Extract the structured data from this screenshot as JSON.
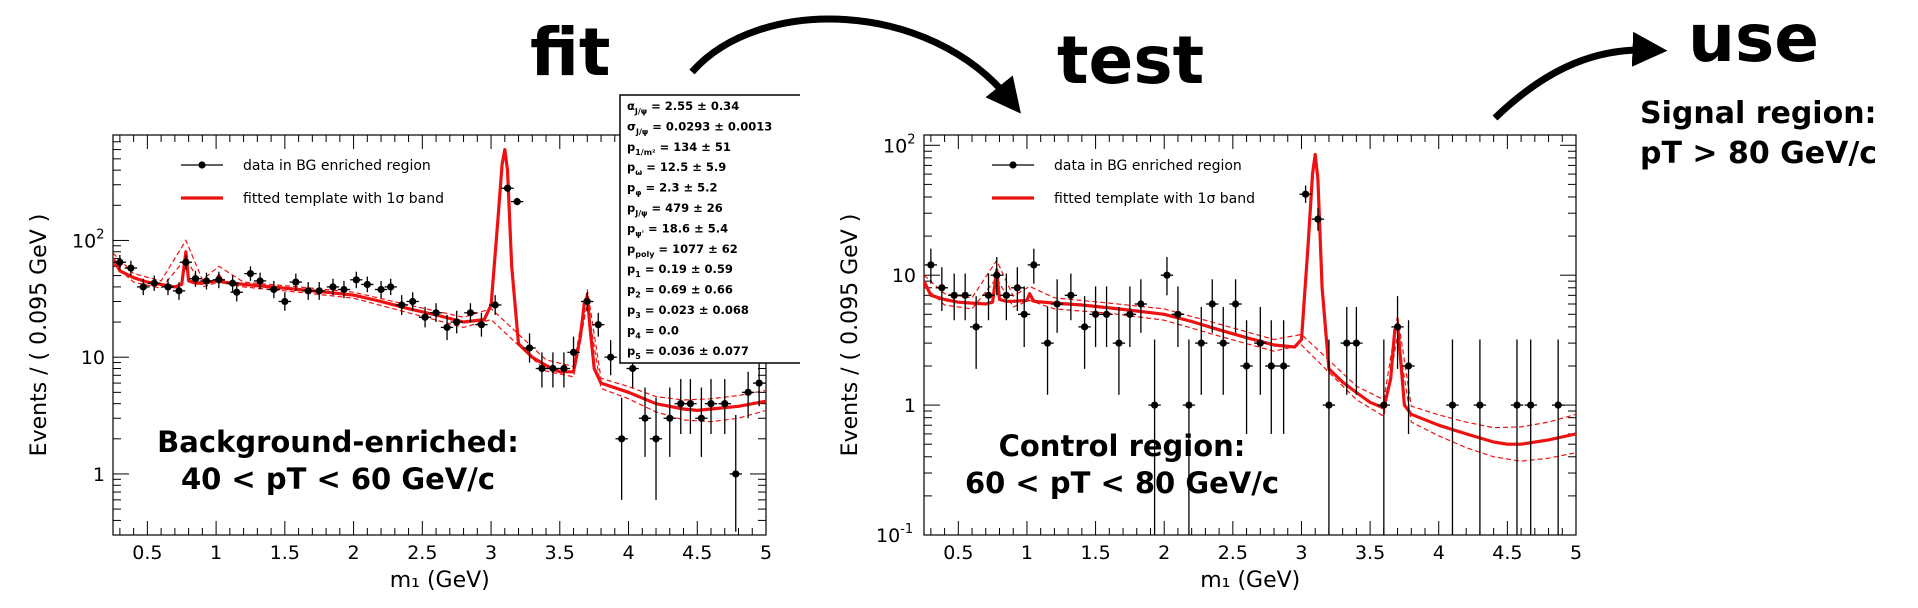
{
  "headings": {
    "fit": "fit",
    "test": "test",
    "use": "use"
  },
  "signal_region": {
    "line1": "Signal region:",
    "line2": "pT > 80 GeV/c"
  },
  "chart_data": [
    {
      "type": "scatter",
      "panel": "Background-enriched",
      "title": "",
      "xlabel": "m₁ (GeV)",
      "ylabel": "Events / ( 0.095 GeV )",
      "xlim": [
        0.25,
        5.0
      ],
      "ylim": [
        0.3,
        800
      ],
      "yscale": "log",
      "xticks": [
        "0.5",
        "1",
        "1.5",
        "2",
        "2.5",
        "3",
        "3.5",
        "4",
        "4.5",
        "5"
      ],
      "yticks": [
        {
          "v": 1,
          "label": "1",
          "exp": ""
        },
        {
          "v": 10,
          "label": "10",
          "exp": ""
        },
        {
          "v": 100,
          "label": "10",
          "exp": "2"
        }
      ],
      "region_label": [
        "Background-enriched:",
        "40 < pT < 60 GeV/c"
      ],
      "legend": {
        "position": "top-left",
        "entries": [
          "data in BG enriched region",
          "fitted template with 1σ band"
        ]
      },
      "fit_params": [
        {
          "name": "α",
          "sub": "J/ψ",
          "value": "2.55 ± 0.34"
        },
        {
          "name": "σ",
          "sub": "J/ψ",
          "value": "0.0293 ± 0.0013"
        },
        {
          "name": "p",
          "sub": "1/m²",
          "value": "134 ± 51"
        },
        {
          "name": "p",
          "sub": "ω",
          "value": "12.5 ± 5.9"
        },
        {
          "name": "p",
          "sub": "φ",
          "value": "2.3 ± 5.2"
        },
        {
          "name": "p",
          "sub": "J/ψ",
          "value": "479 ± 26"
        },
        {
          "name": "p",
          "sub": "ψ'",
          "value": "18.6 ± 5.4"
        },
        {
          "name": "p",
          "sub": "poly",
          "value": "1077 ± 62"
        },
        {
          "name": "p",
          "sub": "1",
          "value": "0.19 ± 0.59"
        },
        {
          "name": "p",
          "sub": "2",
          "value": "0.69 ± 0.66"
        },
        {
          "name": "p",
          "sub": "3",
          "value": "0.023 ± 0.068"
        },
        {
          "name": "p",
          "sub": "4",
          "value": "0.0"
        },
        {
          "name": "p",
          "sub": "5",
          "value": "0.036 ± 0.077"
        }
      ],
      "fit_curve": {
        "x": [
          0.25,
          0.3,
          0.4,
          0.5,
          0.6,
          0.7,
          0.75,
          0.78,
          0.8,
          0.85,
          0.9,
          1.0,
          1.02,
          1.05,
          1.2,
          1.4,
          1.6,
          1.8,
          2.0,
          2.2,
          2.4,
          2.6,
          2.8,
          2.95,
          3.0,
          3.05,
          3.08,
          3.1,
          3.12,
          3.15,
          3.2,
          3.3,
          3.4,
          3.5,
          3.6,
          3.65,
          3.68,
          3.7,
          3.72,
          3.75,
          3.8,
          4.0,
          4.2,
          4.4,
          4.5,
          4.6,
          4.8,
          5.0
        ],
        "y": [
          70,
          55,
          48,
          44,
          42,
          40,
          42,
          80,
          45,
          43,
          43,
          45,
          50,
          44,
          42,
          40,
          38,
          36,
          34,
          30,
          26,
          23,
          20,
          21,
          28,
          150,
          450,
          600,
          400,
          60,
          13,
          10,
          8.5,
          7.5,
          7.5,
          15,
          30,
          33,
          18,
          8,
          6,
          5,
          4,
          3.6,
          3.5,
          3.6,
          3.8,
          4.2
        ]
      },
      "band_upper": {
        "x": [
          0.25,
          0.4,
          0.6,
          0.78,
          0.9,
          1.02,
          1.2,
          1.6,
          2.0,
          2.4,
          2.8,
          3.0,
          3.4,
          3.6,
          3.7,
          3.8,
          4.0,
          4.2,
          4.4,
          4.6,
          4.8,
          5.0
        ],
        "y": [
          78,
          52,
          45,
          100,
          46,
          60,
          44,
          40,
          36,
          28,
          22,
          26,
          9.5,
          8.3,
          38,
          6.6,
          5.6,
          4.6,
          4.3,
          4.4,
          4.7,
          5.2
        ]
      },
      "band_lower": {
        "x": [
          0.25,
          0.4,
          0.6,
          0.78,
          0.9,
          1.02,
          1.2,
          1.6,
          2.0,
          2.4,
          2.8,
          3.0,
          3.4,
          3.6,
          3.7,
          3.8,
          4.0,
          4.2,
          4.4,
          4.6,
          4.8,
          5.0
        ],
        "y": [
          63,
          44,
          39,
          70,
          40,
          44,
          40,
          36,
          32,
          24,
          18,
          21,
          7.6,
          6.8,
          29,
          5.4,
          4.4,
          3.4,
          2.9,
          2.8,
          3.0,
          3.5
        ]
      },
      "points": [
        {
          "x": 0.3,
          "y": 65,
          "lo": 56,
          "hi": 75
        },
        {
          "x": 0.38,
          "y": 58,
          "lo": 50,
          "hi": 67
        },
        {
          "x": 0.47,
          "y": 40,
          "lo": 34,
          "hi": 47
        },
        {
          "x": 0.55,
          "y": 43,
          "lo": 37,
          "hi": 50
        },
        {
          "x": 0.65,
          "y": 40,
          "lo": 34,
          "hi": 47
        },
        {
          "x": 0.73,
          "y": 37,
          "lo": 31,
          "hi": 44
        },
        {
          "x": 0.78,
          "y": 65,
          "lo": 56,
          "hi": 75
        },
        {
          "x": 0.85,
          "y": 47,
          "lo": 40,
          "hi": 55
        },
        {
          "x": 0.93,
          "y": 45,
          "lo": 38,
          "hi": 53
        },
        {
          "x": 1.02,
          "y": 46,
          "lo": 39,
          "hi": 54
        },
        {
          "x": 1.12,
          "y": 43,
          "lo": 36,
          "hi": 50
        },
        {
          "x": 1.15,
          "y": 36,
          "lo": 30,
          "hi": 43
        },
        {
          "x": 1.25,
          "y": 52,
          "lo": 45,
          "hi": 60
        },
        {
          "x": 1.32,
          "y": 45,
          "lo": 38,
          "hi": 53
        },
        {
          "x": 1.42,
          "y": 38,
          "lo": 32,
          "hi": 45
        },
        {
          "x": 1.5,
          "y": 30,
          "lo": 25,
          "hi": 36
        },
        {
          "x": 1.58,
          "y": 44,
          "lo": 37,
          "hi": 52
        },
        {
          "x": 1.67,
          "y": 37,
          "lo": 31,
          "hi": 44
        },
        {
          "x": 1.75,
          "y": 37,
          "lo": 31,
          "hi": 44
        },
        {
          "x": 1.85,
          "y": 40,
          "lo": 34,
          "hi": 47
        },
        {
          "x": 1.93,
          "y": 38,
          "lo": 32,
          "hi": 45
        },
        {
          "x": 2.02,
          "y": 46,
          "lo": 39,
          "hi": 54
        },
        {
          "x": 2.1,
          "y": 42,
          "lo": 36,
          "hi": 49
        },
        {
          "x": 2.2,
          "y": 38,
          "lo": 32,
          "hi": 45
        },
        {
          "x": 2.27,
          "y": 40,
          "lo": 34,
          "hi": 47
        },
        {
          "x": 2.35,
          "y": 28,
          "lo": 23,
          "hi": 34
        },
        {
          "x": 2.43,
          "y": 30,
          "lo": 25,
          "hi": 36
        },
        {
          "x": 2.52,
          "y": 22,
          "lo": 18,
          "hi": 27
        },
        {
          "x": 2.6,
          "y": 24,
          "lo": 20,
          "hi": 29
        },
        {
          "x": 2.68,
          "y": 18,
          "lo": 14,
          "hi": 23
        },
        {
          "x": 2.75,
          "y": 20,
          "lo": 16,
          "hi": 25
        },
        {
          "x": 2.85,
          "y": 24,
          "lo": 20,
          "hi": 29
        },
        {
          "x": 2.93,
          "y": 19,
          "lo": 15,
          "hi": 24
        },
        {
          "x": 3.03,
          "y": 28,
          "lo": 23,
          "hi": 34
        },
        {
          "x": 3.12,
          "y": 280,
          "lo": 260,
          "hi": 300
        },
        {
          "x": 3.19,
          "y": 215,
          "lo": 200,
          "hi": 232
        },
        {
          "x": 3.28,
          "y": 12,
          "lo": 9,
          "hi": 16
        },
        {
          "x": 3.37,
          "y": 8,
          "lo": 5.5,
          "hi": 11
        },
        {
          "x": 3.45,
          "y": 8,
          "lo": 5.5,
          "hi": 11
        },
        {
          "x": 3.53,
          "y": 8,
          "lo": 5.5,
          "hi": 11
        },
        {
          "x": 3.6,
          "y": 11,
          "lo": 8,
          "hi": 15
        },
        {
          "x": 3.7,
          "y": 30,
          "lo": 25,
          "hi": 36
        },
        {
          "x": 3.78,
          "y": 19,
          "lo": 15,
          "hi": 24
        },
        {
          "x": 3.87,
          "y": 10,
          "lo": 7,
          "hi": 14
        },
        {
          "x": 3.95,
          "y": 2,
          "lo": 0.6,
          "hi": 4.5
        },
        {
          "x": 4.03,
          "y": 8,
          "lo": 5.5,
          "hi": 11
        },
        {
          "x": 4.12,
          "y": 3,
          "lo": 1.4,
          "hi": 5.5
        },
        {
          "x": 4.2,
          "y": 2,
          "lo": 0.6,
          "hi": 4.5
        },
        {
          "x": 4.3,
          "y": 3,
          "lo": 1.4,
          "hi": 5.5
        },
        {
          "x": 4.38,
          "y": 4,
          "lo": 2.2,
          "hi": 6.5
        },
        {
          "x": 4.45,
          "y": 4,
          "lo": 2.2,
          "hi": 6.5
        },
        {
          "x": 4.53,
          "y": 3,
          "lo": 1.4,
          "hi": 5.5
        },
        {
          "x": 4.6,
          "y": 4,
          "lo": 2.2,
          "hi": 6.5
        },
        {
          "x": 4.7,
          "y": 4,
          "lo": 2.2,
          "hi": 6.5
        },
        {
          "x": 4.78,
          "y": 1,
          "lo": 0.32,
          "hi": 3.2
        },
        {
          "x": 4.87,
          "y": 5,
          "lo": 3,
          "hi": 7.5
        },
        {
          "x": 4.95,
          "y": 6,
          "lo": 3.8,
          "hi": 8.8
        }
      ]
    },
    {
      "type": "scatter",
      "panel": "Control region",
      "title": "",
      "xlabel": "m₁ (GeV)",
      "ylabel": "Events / ( 0.095 GeV )",
      "xlim": [
        0.25,
        5.0
      ],
      "ylim": [
        0.1,
        120
      ],
      "yscale": "log",
      "xticks": [
        "0.5",
        "1",
        "1.5",
        "2",
        "2.5",
        "3",
        "3.5",
        "4",
        "4.5",
        "5"
      ],
      "yticks": [
        {
          "v": 0.1,
          "label": "10",
          "exp": "-1"
        },
        {
          "v": 1,
          "label": "1",
          "exp": ""
        },
        {
          "v": 10,
          "label": "10",
          "exp": ""
        },
        {
          "v": 100,
          "label": "10",
          "exp": "2"
        }
      ],
      "region_label": [
        "Control region:",
        "60 < pT < 80 GeV/c"
      ],
      "legend": {
        "position": "top-left",
        "entries": [
          "data in BG enriched region",
          "fitted template with 1σ band"
        ]
      },
      "fit_params": [],
      "fit_curve": {
        "x": [
          0.25,
          0.3,
          0.4,
          0.5,
          0.6,
          0.7,
          0.75,
          0.78,
          0.8,
          0.85,
          0.9,
          1.0,
          1.02,
          1.05,
          1.2,
          1.4,
          1.6,
          1.8,
          2.0,
          2.2,
          2.4,
          2.6,
          2.8,
          2.95,
          3.0,
          3.05,
          3.08,
          3.1,
          3.12,
          3.15,
          3.2,
          3.3,
          3.4,
          3.5,
          3.6,
          3.65,
          3.68,
          3.7,
          3.72,
          3.75,
          3.8,
          4.0,
          4.2,
          4.4,
          4.5,
          4.6,
          4.8,
          5.0
        ],
        "y": [
          9,
          7,
          6.5,
          6.2,
          6.1,
          6,
          6.2,
          11,
          6.5,
          6.3,
          6.3,
          6.4,
          7.2,
          6.3,
          6.1,
          5.9,
          5.6,
          5.3,
          5.0,
          4.4,
          3.8,
          3.3,
          2.9,
          2.8,
          3.2,
          18,
          60,
          85,
          55,
          8,
          1.9,
          1.5,
          1.25,
          1.05,
          0.95,
          1.6,
          3.8,
          4.2,
          2.4,
          1.0,
          0.85,
          0.7,
          0.6,
          0.52,
          0.5,
          0.5,
          0.54,
          0.6
        ]
      },
      "band_upper": {
        "x": [
          0.25,
          0.4,
          0.6,
          0.78,
          0.9,
          1.02,
          1.2,
          1.6,
          2.0,
          2.4,
          2.8,
          3.0,
          3.4,
          3.6,
          3.7,
          3.8,
          4.0,
          4.2,
          4.4,
          4.6,
          4.8,
          5.0
        ],
        "y": [
          10,
          7.2,
          6.7,
          13,
          6.9,
          8.2,
          6.7,
          6.1,
          5.5,
          4.2,
          3.2,
          3.5,
          1.4,
          1.1,
          4.9,
          0.98,
          0.84,
          0.74,
          0.67,
          0.68,
          0.74,
          0.85
        ]
      },
      "band_lower": {
        "x": [
          0.25,
          0.4,
          0.6,
          0.78,
          0.9,
          1.02,
          1.2,
          1.6,
          2.0,
          2.4,
          2.8,
          3.0,
          3.4,
          3.6,
          3.7,
          3.8,
          4.0,
          4.2,
          4.4,
          4.6,
          4.8,
          5.0
        ],
        "y": [
          8.2,
          5.9,
          5.5,
          9.5,
          5.7,
          6.4,
          5.5,
          5.1,
          4.5,
          3.4,
          2.6,
          2.9,
          1.1,
          0.82,
          3.5,
          0.74,
          0.58,
          0.47,
          0.4,
          0.37,
          0.39,
          0.43
        ]
      },
      "points": [
        {
          "x": 0.3,
          "y": 12,
          "lo": 8.6,
          "hi": 16
        },
        {
          "x": 0.38,
          "y": 8,
          "lo": 5.3,
          "hi": 11.5
        },
        {
          "x": 0.47,
          "y": 7,
          "lo": 4.5,
          "hi": 10.3
        },
        {
          "x": 0.55,
          "y": 7,
          "lo": 4.5,
          "hi": 10.3
        },
        {
          "x": 0.63,
          "y": 4,
          "lo": 1.9,
          "hi": 6.9
        },
        {
          "x": 0.72,
          "y": 7,
          "lo": 4.5,
          "hi": 10.3
        },
        {
          "x": 0.78,
          "y": 10,
          "lo": 7,
          "hi": 13.8
        },
        {
          "x": 0.85,
          "y": 7,
          "lo": 4.5,
          "hi": 10.3
        },
        {
          "x": 0.93,
          "y": 8,
          "lo": 5.3,
          "hi": 11.5
        },
        {
          "x": 0.98,
          "y": 5,
          "lo": 2.8,
          "hi": 8.2
        },
        {
          "x": 1.05,
          "y": 12,
          "lo": 8.6,
          "hi": 16
        },
        {
          "x": 1.15,
          "y": 3,
          "lo": 1.2,
          "hi": 5.7
        },
        {
          "x": 1.22,
          "y": 6,
          "lo": 3.6,
          "hi": 9.3
        },
        {
          "x": 1.32,
          "y": 7,
          "lo": 4.5,
          "hi": 10.3
        },
        {
          "x": 1.42,
          "y": 4,
          "lo": 1.9,
          "hi": 6.9
        },
        {
          "x": 1.5,
          "y": 5,
          "lo": 2.8,
          "hi": 8.2
        },
        {
          "x": 1.58,
          "y": 5,
          "lo": 2.8,
          "hi": 8.2
        },
        {
          "x": 1.67,
          "y": 3,
          "lo": 1.2,
          "hi": 5.7
        },
        {
          "x": 1.75,
          "y": 5,
          "lo": 2.8,
          "hi": 8.2
        },
        {
          "x": 1.83,
          "y": 6,
          "lo": 3.6,
          "hi": 9.3
        },
        {
          "x": 1.93,
          "y": 1,
          "lo": 0.1,
          "hi": 3.2
        },
        {
          "x": 2.02,
          "y": 10,
          "lo": 7,
          "hi": 13.8
        },
        {
          "x": 2.1,
          "y": 5,
          "lo": 2.8,
          "hi": 8.2
        },
        {
          "x": 2.18,
          "y": 1,
          "lo": 0.1,
          "hi": 3.2
        },
        {
          "x": 2.27,
          "y": 3,
          "lo": 1.2,
          "hi": 5.7
        },
        {
          "x": 2.35,
          "y": 6,
          "lo": 3.6,
          "hi": 9.3
        },
        {
          "x": 2.43,
          "y": 3,
          "lo": 1.2,
          "hi": 5.7
        },
        {
          "x": 2.52,
          "y": 6,
          "lo": 3.6,
          "hi": 9.3
        },
        {
          "x": 2.6,
          "y": 2,
          "lo": 0.6,
          "hi": 4.5
        },
        {
          "x": 2.7,
          "y": 3,
          "lo": 1.2,
          "hi": 5.7
        },
        {
          "x": 2.78,
          "y": 2,
          "lo": 0.6,
          "hi": 4.5
        },
        {
          "x": 2.87,
          "y": 2,
          "lo": 0.6,
          "hi": 4.5
        },
        {
          "x": 3.03,
          "y": 42,
          "lo": 36,
          "hi": 49
        },
        {
          "x": 3.12,
          "y": 27,
          "lo": 22,
          "hi": 33
        },
        {
          "x": 3.2,
          "y": 1,
          "lo": 0.1,
          "hi": 3.2
        },
        {
          "x": 3.33,
          "y": 3,
          "lo": 1.2,
          "hi": 5.7
        },
        {
          "x": 3.4,
          "y": 3,
          "lo": 1.2,
          "hi": 5.7
        },
        {
          "x": 3.6,
          "y": 1,
          "lo": 0.1,
          "hi": 3.2
        },
        {
          "x": 3.7,
          "y": 4,
          "lo": 1.9,
          "hi": 6.9
        },
        {
          "x": 3.78,
          "y": 2,
          "lo": 0.6,
          "hi": 4.5
        },
        {
          "x": 4.1,
          "y": 1,
          "lo": 0.1,
          "hi": 3.2
        },
        {
          "x": 4.3,
          "y": 1,
          "lo": 0.1,
          "hi": 3.2
        },
        {
          "x": 4.57,
          "y": 1,
          "lo": 0.1,
          "hi": 3.2
        },
        {
          "x": 4.67,
          "y": 1,
          "lo": 0.1,
          "hi": 3.2
        },
        {
          "x": 4.87,
          "y": 1,
          "lo": 0.1,
          "hi": 3.2
        }
      ]
    }
  ],
  "colors": {
    "data": "#000000",
    "fit": "#ee1111",
    "arrow": "#000000",
    "frame": "#000000"
  }
}
